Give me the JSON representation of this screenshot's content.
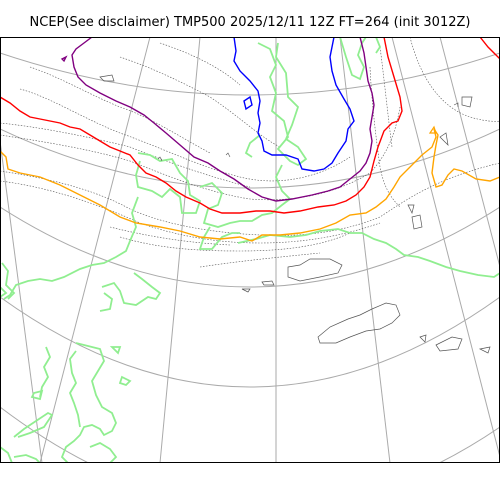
{
  "title": "NCEP(See disclaimer) TMP500 2025/12/11 12Z FT=264 (init 3012Z)",
  "colors": {
    "graticule": "#aaaaaa",
    "coastline": "#555555",
    "contour_minus30": "#ffa500",
    "contour_minus36": "#ff0000",
    "contour_minus42": "#800080",
    "contour_minus48": "#0000ff",
    "contour_green": "#90ee90",
    "frame": "#000000"
  },
  "legend": []
}
